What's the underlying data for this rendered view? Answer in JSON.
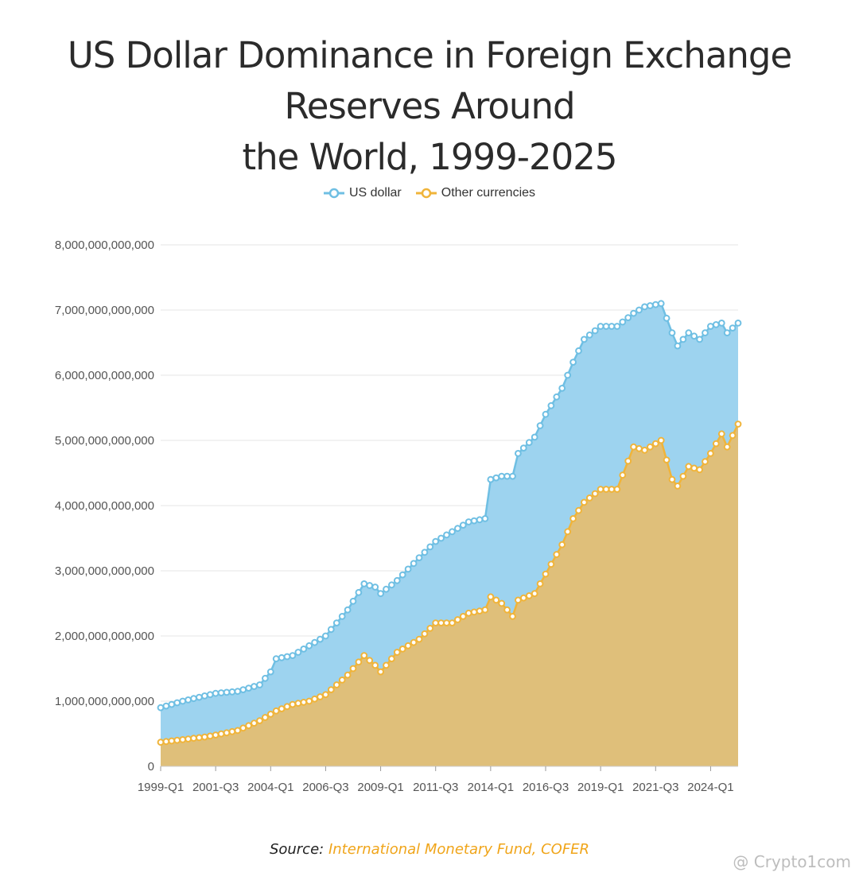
{
  "header": {
    "title_line1": "US Dollar Dominance in Foreign Exchange Reserves Around",
    "title_line2": "the World, 1999-2025"
  },
  "legend": {
    "items": [
      {
        "label": "US dollar",
        "color": "#6fbfe3"
      },
      {
        "label": "Other currencies",
        "color": "#f0b43a"
      }
    ]
  },
  "footer": {
    "source_prefix": "Source:",
    "source_name": "International Monetary Fund, COFER",
    "watermark": "@ Crypto1com"
  },
  "chart_data": {
    "type": "area",
    "title": "US Dollar Dominance in Foreign Exchange Reserves Around the World, 1999-2025",
    "stacked": true,
    "x_tick_labels": [
      "1999-Q1",
      "2001-Q3",
      "2004-Q1",
      "2006-Q3",
      "2009-Q1",
      "2011-Q3",
      "2014-Q1",
      "2016-Q3",
      "2019-Q1",
      "2021-Q3",
      "2024-Q1"
    ],
    "y_tick_labels": [
      "0",
      "1,000,000,000,000",
      "2,000,000,000,000",
      "3,000,000,000,000",
      "4,000,000,000,000",
      "5,000,000,000,000",
      "6,000,000,000,000",
      "7,000,000,000,000",
      "8,000,000,000,000"
    ],
    "ylim": [
      0,
      8000000000000
    ],
    "grid": true,
    "legend_position": "top-center",
    "x_range": [
      "1999-Q1",
      "2025-Q2"
    ],
    "series": [
      {
        "name": "US dollar",
        "color": "#6fbfe3",
        "fill": "#9dd3ef",
        "note_values": "cumulative top of stack (total reserves), trillions USD",
        "points": [
          [
            "1999-Q1",
            0.9
          ],
          [
            "2000-Q1",
            1.0
          ],
          [
            "2001-Q1",
            1.08
          ],
          [
            "2001-Q3",
            1.12
          ],
          [
            "2002-Q3",
            1.15
          ],
          [
            "2003-Q3",
            1.25
          ],
          [
            "2004-Q1",
            1.45
          ],
          [
            "2004-Q2",
            1.65
          ],
          [
            "2005-Q1",
            1.7
          ],
          [
            "2005-Q4",
            1.85
          ],
          [
            "2006-Q3",
            2.0
          ],
          [
            "2007-Q3",
            2.4
          ],
          [
            "2008-Q2",
            2.8
          ],
          [
            "2008-Q4",
            2.75
          ],
          [
            "2009-Q1",
            2.65
          ],
          [
            "2009-Q4",
            2.85
          ],
          [
            "2010-Q4",
            3.2
          ],
          [
            "2011-Q3",
            3.45
          ],
          [
            "2012-Q2",
            3.6
          ],
          [
            "2013-Q1",
            3.75
          ],
          [
            "2013-Q4",
            3.8
          ],
          [
            "2014-Q1",
            4.4
          ],
          [
            "2014-Q3",
            4.45
          ],
          [
            "2015-Q1",
            4.45
          ],
          [
            "2015-Q2",
            4.8
          ],
          [
            "2016-Q1",
            5.05
          ],
          [
            "2016-Q3",
            5.4
          ],
          [
            "2017-Q2",
            5.8
          ],
          [
            "2017-Q4",
            6.2
          ],
          [
            "2018-Q2",
            6.55
          ],
          [
            "2019-Q1",
            6.75
          ],
          [
            "2019-Q4",
            6.75
          ],
          [
            "2020-Q3",
            6.95
          ],
          [
            "2021-Q1",
            7.05
          ],
          [
            "2021-Q4",
            7.1
          ],
          [
            "2022-Q2",
            6.65
          ],
          [
            "2022-Q3",
            6.45
          ],
          [
            "2023-Q1",
            6.65
          ],
          [
            "2023-Q3",
            6.55
          ],
          [
            "2024-Q1",
            6.75
          ],
          [
            "2024-Q3",
            6.8
          ],
          [
            "2024-Q4",
            6.65
          ],
          [
            "2025-Q2",
            6.8
          ]
        ]
      },
      {
        "name": "Other currencies",
        "color": "#f0b43a",
        "fill": "#dfbf7a",
        "note_values": "non-dollar reserves, trillions USD",
        "points": [
          [
            "1999-Q1",
            0.37
          ],
          [
            "2000-Q1",
            0.41
          ],
          [
            "2001-Q1",
            0.45
          ],
          [
            "2001-Q3",
            0.48
          ],
          [
            "2002-Q3",
            0.55
          ],
          [
            "2003-Q3",
            0.7
          ],
          [
            "2004-Q1",
            0.8
          ],
          [
            "2004-Q2",
            0.85
          ],
          [
            "2005-Q1",
            0.95
          ],
          [
            "2005-Q4",
            1.0
          ],
          [
            "2006-Q3",
            1.1
          ],
          [
            "2007-Q3",
            1.4
          ],
          [
            "2008-Q2",
            1.7
          ],
          [
            "2008-Q4",
            1.55
          ],
          [
            "2009-Q1",
            1.45
          ],
          [
            "2009-Q4",
            1.75
          ],
          [
            "2010-Q4",
            1.95
          ],
          [
            "2011-Q3",
            2.2
          ],
          [
            "2012-Q2",
            2.2
          ],
          [
            "2013-Q1",
            2.35
          ],
          [
            "2013-Q4",
            2.4
          ],
          [
            "2014-Q1",
            2.6
          ],
          [
            "2014-Q3",
            2.5
          ],
          [
            "2015-Q1",
            2.3
          ],
          [
            "2015-Q2",
            2.55
          ],
          [
            "2016-Q1",
            2.65
          ],
          [
            "2016-Q3",
            2.95
          ],
          [
            "2017-Q2",
            3.4
          ],
          [
            "2017-Q4",
            3.8
          ],
          [
            "2018-Q2",
            4.05
          ],
          [
            "2019-Q1",
            4.25
          ],
          [
            "2019-Q4",
            4.25
          ],
          [
            "2020-Q3",
            4.9
          ],
          [
            "2021-Q1",
            4.85
          ],
          [
            "2021-Q4",
            5.0
          ],
          [
            "2022-Q2",
            4.4
          ],
          [
            "2022-Q3",
            4.3
          ],
          [
            "2023-Q1",
            4.6
          ],
          [
            "2023-Q3",
            4.55
          ],
          [
            "2024-Q1",
            4.8
          ],
          [
            "2024-Q3",
            5.1
          ],
          [
            "2024-Q4",
            4.9
          ],
          [
            "2025-Q2",
            5.25
          ]
        ]
      }
    ]
  }
}
